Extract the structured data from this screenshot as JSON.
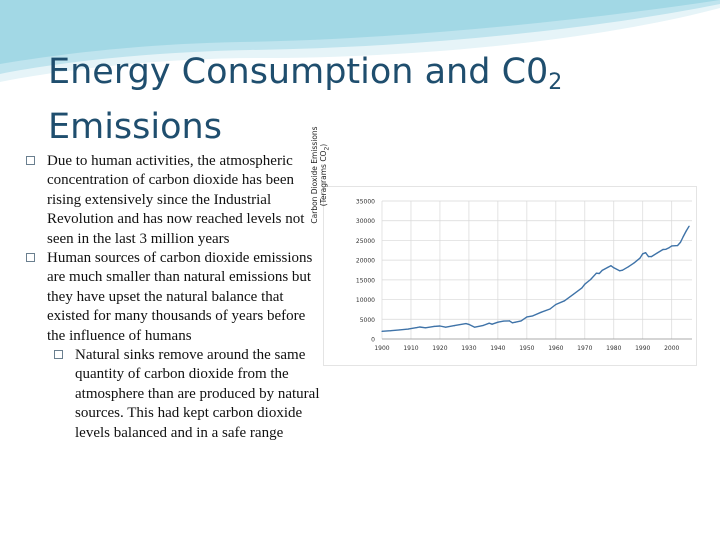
{
  "slide": {
    "title": "Energy Consumption and C0",
    "title_subscript": "2",
    "title_line2": "Emissions",
    "bullets": [
      "Due to human activities, the atmospheric concentration of carbon dioxide has been rising extensively since the Industrial Revolution and has now reached levels not seen in the last 3 million years",
      " Human sources of carbon dioxide emissions are much smaller than natural emissions but they have upset the natural balance that existed for many thousands of years before the influence of humans"
    ],
    "sub_bullets": [
      "Natural sinks remove around the same quantity of carbon dioxide from the atmosphere than are produced by natural sources. This had kept carbon dioxide levels balanced and in a safe range"
    ],
    "accent_color": "#1f4e6e",
    "wave_colors": [
      "#bfe4ee",
      "#8fd0e0",
      "#e6f4f8"
    ]
  },
  "chart_data": {
    "type": "line",
    "ylabel_line1": "Carbon Dioxide Emissions",
    "ylabel_line2": "(Teragrams  CO",
    "ylabel_line2_sub": "2",
    "ylabel_line2_end": ")",
    "x_ticks": [
      "1900",
      "1910",
      "1920",
      "1930",
      "1940",
      "1950",
      "1960",
      "1970",
      "1980",
      "1990",
      "2000"
    ],
    "y_ticks": [
      "0",
      "5000",
      "10000",
      "15000",
      "20000",
      "25000",
      "30000",
      "35000"
    ],
    "xlim": [
      1900,
      2007
    ],
    "ylim": [
      0,
      35000
    ],
    "grid": true,
    "line_color": "#3f73a8",
    "x": [
      1900,
      1903,
      1906,
      1909,
      1912,
      1913,
      1915,
      1918,
      1920,
      1922,
      1925,
      1929,
      1930,
      1932,
      1935,
      1937,
      1938,
      1940,
      1942,
      1944,
      1945,
      1946,
      1948,
      1950,
      1952,
      1955,
      1958,
      1960,
      1963,
      1966,
      1969,
      1970,
      1972,
      1974,
      1975,
      1976,
      1978,
      1979,
      1980,
      1982,
      1983,
      1985,
      1987,
      1989,
      1990,
      1991,
      1992,
      1993,
      1995,
      1997,
      1998,
      1999,
      2000,
      2002,
      2003,
      2004,
      2005,
      2006
    ],
    "y": [
      1950,
      2100,
      2300,
      2500,
      2900,
      3050,
      2850,
      3200,
      3300,
      3000,
      3400,
      3900,
      3700,
      3000,
      3450,
      4000,
      3750,
      4250,
      4550,
      4600,
      4100,
      4250,
      4600,
      5600,
      5850,
      6800,
      7600,
      8750,
      9700,
      11300,
      12950,
      13900,
      15100,
      16700,
      16600,
      17400,
      18200,
      18600,
      18050,
      17300,
      17450,
      18300,
      19300,
      20500,
      21600,
      21900,
      20900,
      20900,
      21800,
      22700,
      22750,
      23100,
      23600,
      23700,
      24500,
      26000,
      27400,
      28600
    ]
  }
}
